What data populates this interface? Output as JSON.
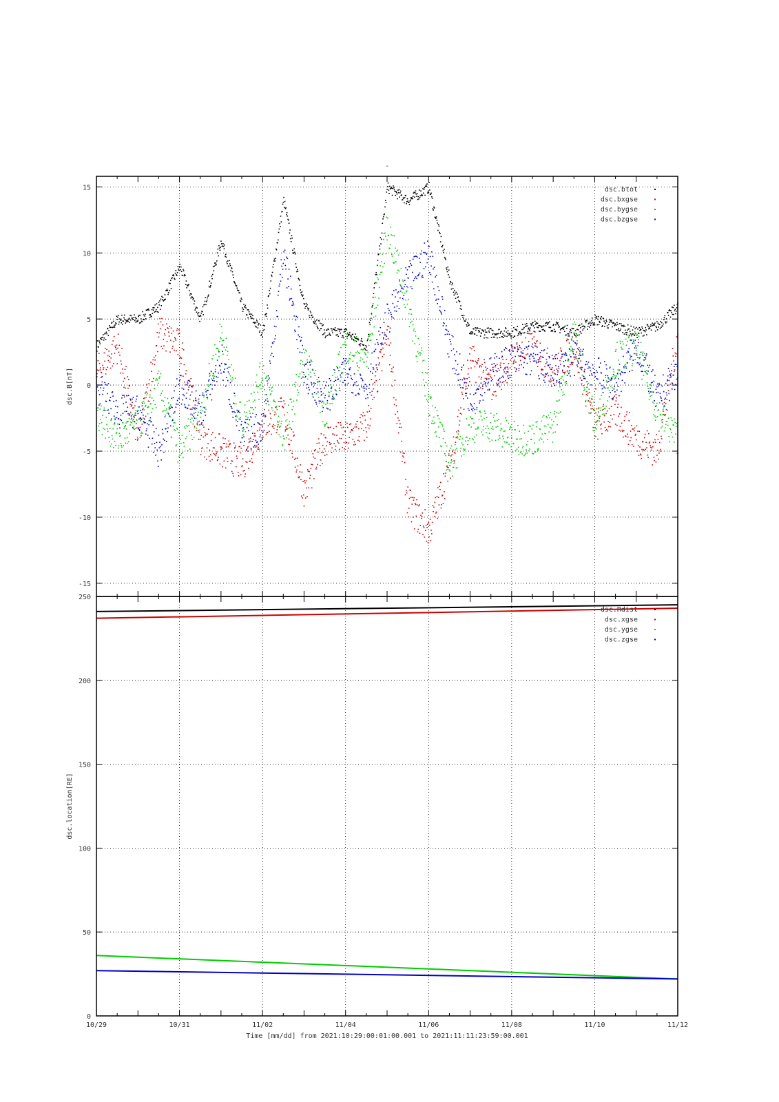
{
  "chart_data": [
    {
      "type": "scatter",
      "title": "-",
      "ylabel": "dsc.B[nT]",
      "ylim": [
        -16,
        15.8
      ],
      "yticks": [
        -15,
        -10,
        -5,
        0,
        5,
        10,
        15
      ],
      "xlim": [
        0,
        14
      ],
      "grid": true,
      "legend_position": "top-right",
      "series": [
        {
          "name": "dsc.btot",
          "color": "#000000",
          "x": [
            0,
            0.5,
            1,
            1.5,
            2,
            2.5,
            3,
            3.5,
            4,
            4.5,
            5,
            5.5,
            6,
            6.5,
            7,
            7.5,
            8,
            8.5,
            9,
            9.5,
            10,
            10.5,
            11,
            11.5,
            12,
            12.5,
            13,
            13.5,
            14
          ],
          "values": [
            3,
            5,
            5,
            6,
            9,
            5,
            11,
            6,
            4,
            14,
            6,
            4,
            4,
            3,
            15,
            14,
            15,
            8,
            4,
            4,
            4,
            4.5,
            4.5,
            4,
            5,
            4.5,
            4,
            4.5,
            6
          ]
        },
        {
          "name": "dsc.bxgse",
          "color": "#cc0000",
          "x": [
            0,
            0.5,
            1,
            1.5,
            2,
            2.5,
            3,
            3.5,
            4,
            4.5,
            5,
            5.5,
            6,
            6.5,
            7,
            7.5,
            8,
            8.5,
            9,
            9.5,
            10,
            10.5,
            11,
            11.5,
            12,
            12.5,
            13,
            13.5,
            14
          ],
          "values": [
            1,
            3,
            -4,
            4,
            3,
            -4,
            -5,
            -6,
            -3,
            -2,
            -8,
            -4,
            -4,
            -3,
            4,
            -9,
            -11,
            -6,
            2,
            0,
            2,
            3,
            1,
            3,
            -3,
            -2,
            -4,
            -5,
            4
          ]
        },
        {
          "name": "dsc.bygse",
          "color": "#00cc00",
          "x": [
            0,
            0.5,
            1,
            1.5,
            2,
            2.5,
            3,
            3.5,
            4,
            4.5,
            5,
            5.5,
            6,
            6.5,
            7,
            7.5,
            8,
            8.5,
            9,
            9.5,
            10,
            10.5,
            11,
            11.5,
            12,
            12.5,
            13,
            13.5,
            14
          ],
          "values": [
            -2,
            -4,
            -3,
            0,
            -5,
            -2,
            4,
            -3,
            1,
            -4,
            2,
            -2,
            3,
            2,
            12,
            6,
            -1,
            -6,
            -3,
            -3,
            -4,
            -4,
            -3,
            4,
            -3,
            2,
            3,
            -2,
            -4
          ]
        },
        {
          "name": "dsc.bzgse",
          "color": "#0000cc",
          "x": [
            0,
            0.5,
            1,
            1.5,
            2,
            2.5,
            3,
            3.5,
            4,
            4.5,
            5,
            5.5,
            6,
            6.5,
            7,
            7.5,
            8,
            8.5,
            9,
            9.5,
            10,
            10.5,
            11,
            11.5,
            12,
            12.5,
            13,
            13.5,
            14
          ],
          "values": [
            0,
            -2,
            -2,
            -5,
            0,
            -2,
            2,
            -4,
            -3,
            10,
            1,
            -1,
            1,
            0,
            5,
            8,
            10,
            3,
            -1,
            1,
            2,
            2,
            1,
            2,
            1,
            0,
            3,
            -1,
            1
          ]
        }
      ]
    },
    {
      "type": "line",
      "ylabel": "dsc.location[RE]",
      "ylim": [
        0,
        250
      ],
      "yticks": [
        0,
        50,
        100,
        150,
        200,
        250
      ],
      "xlim": [
        0,
        14
      ],
      "xticks": [
        {
          "x": 0,
          "label": "10/29"
        },
        {
          "x": 2,
          "label": "10/31"
        },
        {
          "x": 4,
          "label": "11/02"
        },
        {
          "x": 6,
          "label": "11/04"
        },
        {
          "x": 8,
          "label": "11/06"
        },
        {
          "x": 10,
          "label": "11/08"
        },
        {
          "x": 12,
          "label": "11/10"
        },
        {
          "x": 14,
          "label": "11/12"
        }
      ],
      "xlabel": "Time [mm/dd]  from 2021:10:29:00:01:00.001  to  2021:11:11:23:59:00.001",
      "grid": true,
      "legend_position": "top-right",
      "series": [
        {
          "name": "dsc.Rdist",
          "color": "#000000",
          "x": [
            0,
            14
          ],
          "values": [
            241,
            245
          ]
        },
        {
          "name": "dsc.xgse",
          "color": "#cc0000",
          "x": [
            0,
            14
          ],
          "values": [
            237,
            243
          ]
        },
        {
          "name": "dsc.ygse",
          "color": "#00cc00",
          "x": [
            0,
            14
          ],
          "values": [
            36,
            22
          ]
        },
        {
          "name": "dsc.zgse",
          "color": "#0000cc",
          "x": [
            0,
            14
          ],
          "values": [
            27,
            22
          ]
        }
      ]
    }
  ]
}
